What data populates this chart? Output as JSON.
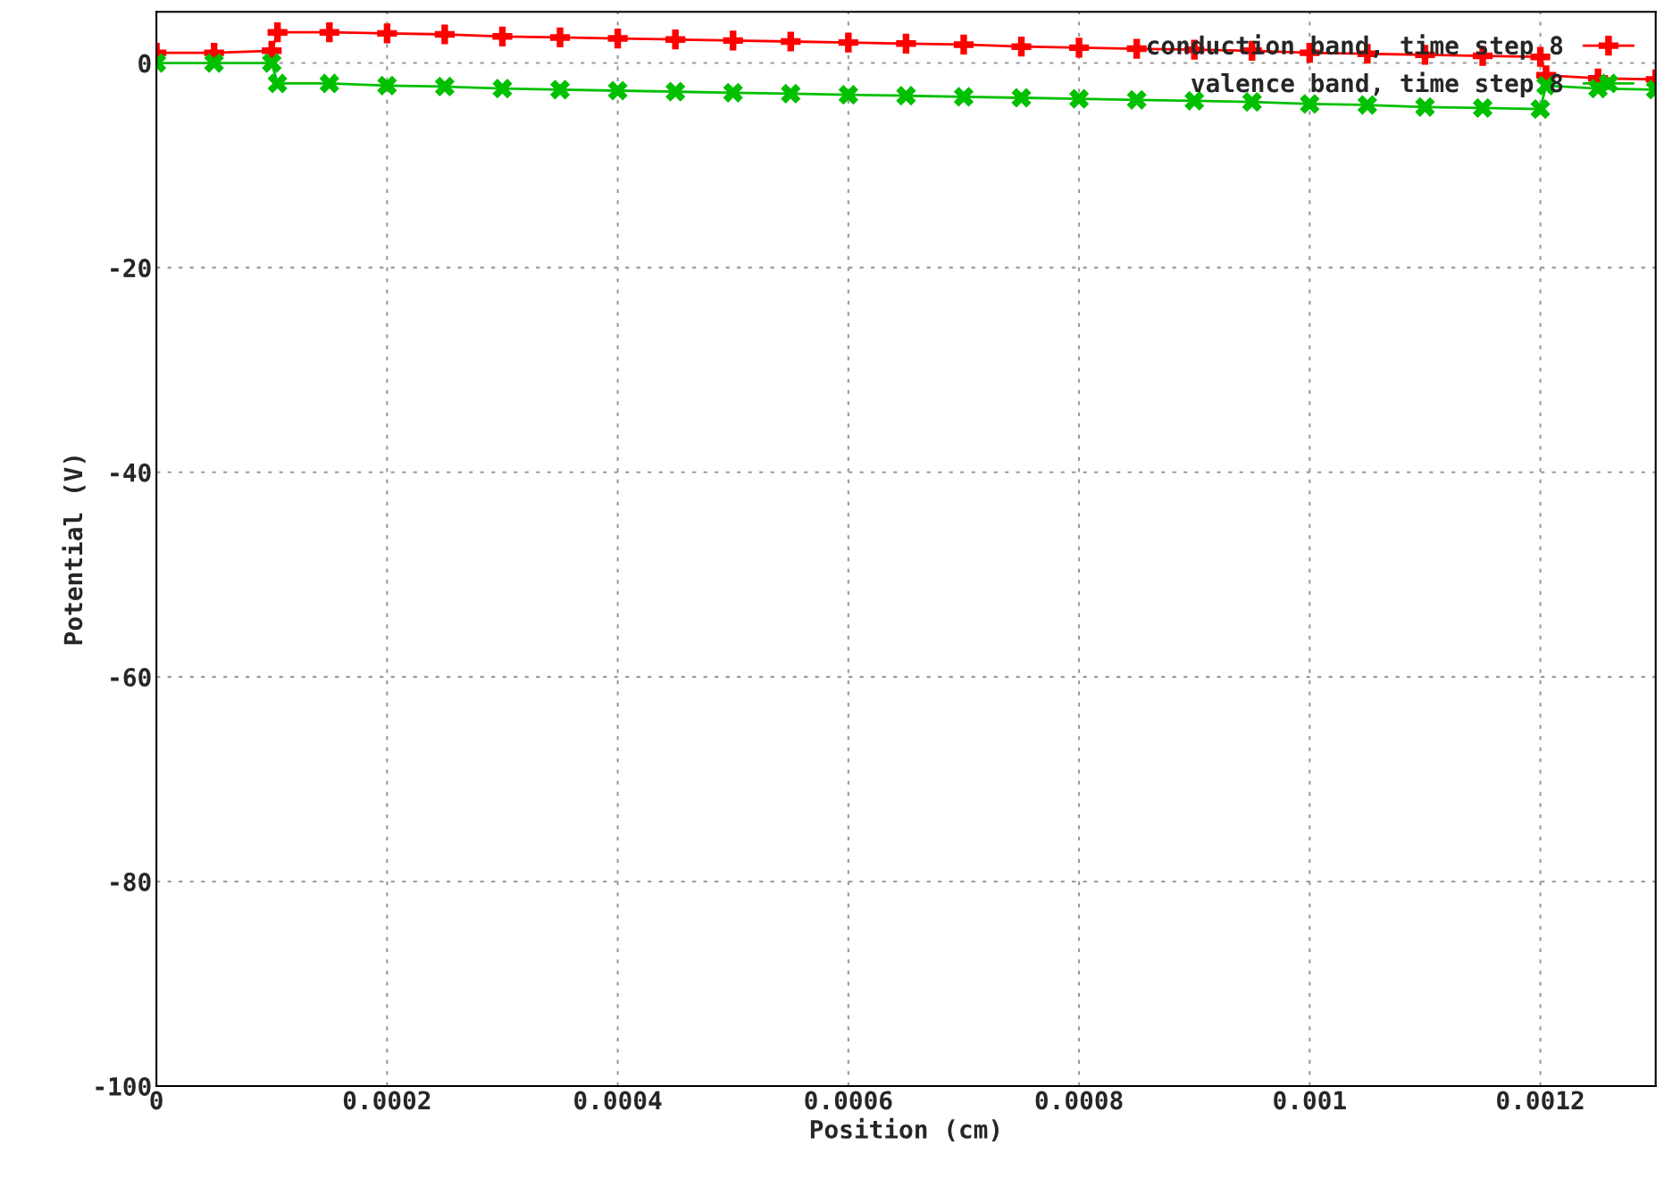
{
  "chart_data": {
    "type": "line",
    "xlabel": "Position (cm)",
    "ylabel": "Potential (V)",
    "xlim": [
      0,
      0.0013
    ],
    "ylim": [
      -100,
      5
    ],
    "xticks": [
      0,
      0.0002,
      0.0004,
      0.0006,
      0.0008,
      0.001,
      0.0012
    ],
    "yticks": [
      -100,
      -80,
      -60,
      -40,
      -20,
      0
    ],
    "grid": true,
    "legend": "top right",
    "series": [
      {
        "name": "conduction band, time step 8",
        "color": "#ff0000",
        "marker": "cross",
        "x": [
          0,
          5e-05,
          0.0001,
          0.000105,
          0.00015,
          0.0002,
          0.00025,
          0.0003,
          0.00035,
          0.0004,
          0.00045,
          0.0005,
          0.00055,
          0.0006,
          0.00065,
          0.0007,
          0.00075,
          0.0008,
          0.00085,
          0.0009,
          0.00095,
          0.001,
          0.00105,
          0.0011,
          0.00115,
          0.0012,
          0.001205,
          0.00125,
          0.0013
        ],
        "values": [
          1.0,
          1.0,
          1.2,
          3.0,
          3.0,
          2.9,
          2.8,
          2.6,
          2.5,
          2.4,
          2.3,
          2.2,
          2.1,
          2.0,
          1.9,
          1.8,
          1.6,
          1.5,
          1.4,
          1.3,
          1.2,
          1.0,
          0.9,
          0.8,
          0.7,
          0.6,
          -1.2,
          -1.5,
          -1.6
        ]
      },
      {
        "name": "valence band, time step 8",
        "color": "#00c000",
        "marker": "cross",
        "x": [
          0,
          5e-05,
          0.0001,
          0.000105,
          0.00015,
          0.0002,
          0.00025,
          0.0003,
          0.00035,
          0.0004,
          0.00045,
          0.0005,
          0.00055,
          0.0006,
          0.00065,
          0.0007,
          0.00075,
          0.0008,
          0.00085,
          0.0009,
          0.00095,
          0.001,
          0.00105,
          0.0011,
          0.00115,
          0.0012,
          0.001205,
          0.00125,
          0.0013
        ],
        "values": [
          0,
          0,
          0,
          -2.0,
          -2.0,
          -2.2,
          -2.3,
          -2.5,
          -2.6,
          -2.7,
          -2.8,
          -2.9,
          -3.0,
          -3.1,
          -3.2,
          -3.3,
          -3.4,
          -3.5,
          -3.6,
          -3.7,
          -3.8,
          -4.0,
          -4.1,
          -4.3,
          -4.4,
          -4.5,
          -2.2,
          -2.5,
          -2.6
        ]
      }
    ]
  }
}
